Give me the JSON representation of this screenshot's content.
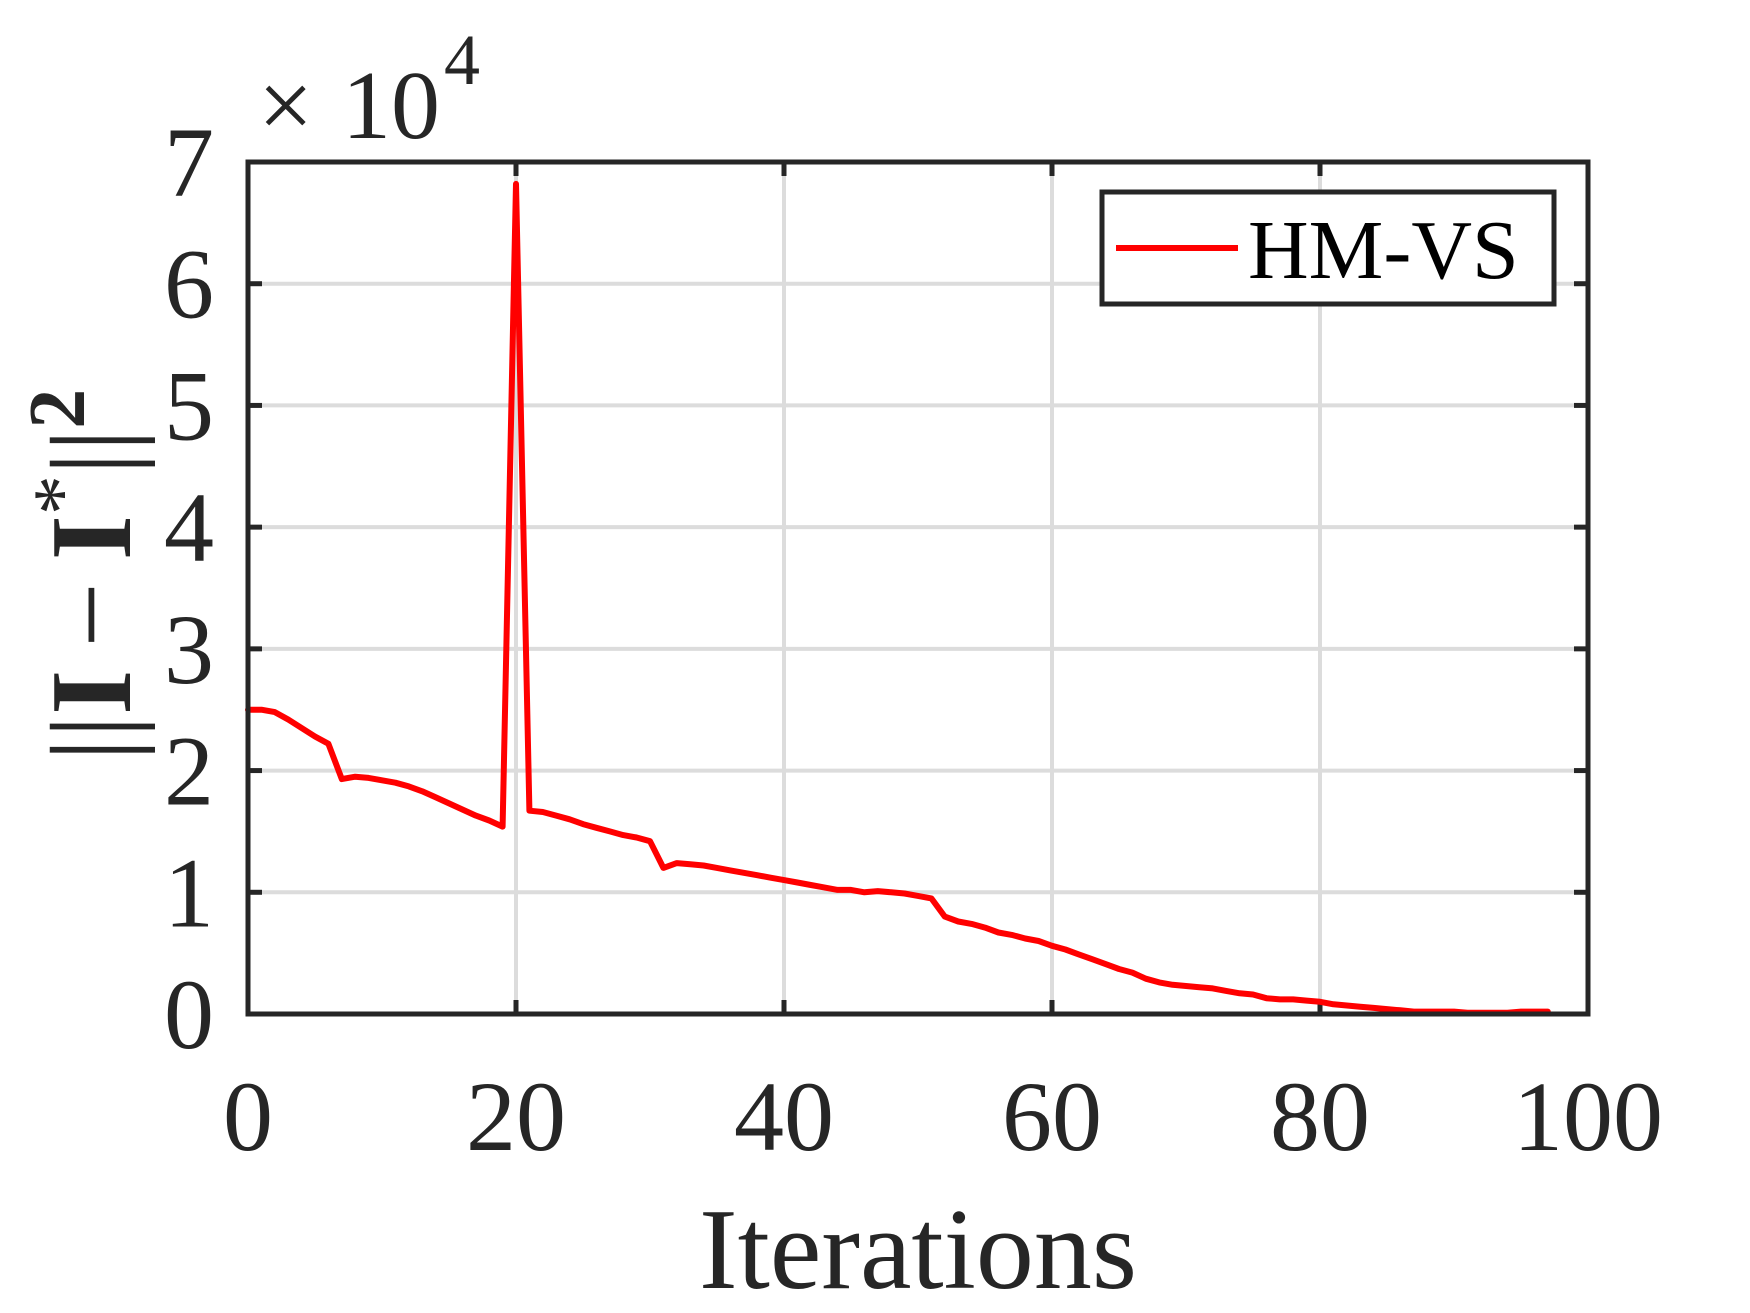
{
  "chart_data": {
    "type": "line",
    "xlabel": "Iterations",
    "ylabel": "||I − I*||²",
    "ylabel_parts": {
      "bars_left": "||",
      "I1": "I",
      "minus": "−",
      "I2": "I",
      "star": "*",
      "bars_right": "||",
      "power": "2"
    },
    "xlim": [
      0,
      100
    ],
    "ylim": [
      0,
      7
    ],
    "x_ticks": [
      "0",
      "20",
      "40",
      "60",
      "80",
      "100"
    ],
    "y_ticks": [
      "0",
      "1",
      "2",
      "3",
      "4",
      "5",
      "6",
      "7"
    ],
    "y_multiplier": {
      "times": "×",
      "base": "10",
      "exponent": "4"
    },
    "grid": true,
    "legend_position": "top-right",
    "series": [
      {
        "name": "HM-VS",
        "color": "#ff0000",
        "x": [
          0,
          1,
          2,
          3,
          4,
          5,
          6,
          7,
          8,
          9,
          10,
          11,
          12,
          13,
          14,
          15,
          16,
          17,
          18,
          19,
          20,
          21,
          22,
          23,
          24,
          25,
          26,
          27,
          28,
          29,
          30,
          31,
          32,
          33,
          34,
          35,
          36,
          37,
          38,
          39,
          40,
          41,
          42,
          43,
          44,
          45,
          46,
          47,
          48,
          49,
          50,
          51,
          52,
          53,
          54,
          55,
          56,
          57,
          58,
          59,
          60,
          61,
          62,
          63,
          64,
          65,
          66,
          67,
          68,
          69,
          70,
          71,
          72,
          73,
          74,
          75,
          76,
          77,
          78,
          79,
          80,
          81,
          82,
          83,
          84,
          85,
          86,
          87,
          88,
          89,
          90,
          91,
          92,
          93,
          94,
          95,
          96,
          97
        ],
        "y": [
          2.5,
          2.5,
          2.48,
          2.42,
          2.35,
          2.28,
          2.22,
          1.93,
          1.95,
          1.94,
          1.92,
          1.9,
          1.87,
          1.83,
          1.78,
          1.73,
          1.68,
          1.63,
          1.59,
          1.54,
          6.82,
          1.67,
          1.66,
          1.63,
          1.6,
          1.56,
          1.53,
          1.5,
          1.47,
          1.45,
          1.42,
          1.2,
          1.24,
          1.23,
          1.22,
          1.2,
          1.18,
          1.16,
          1.14,
          1.12,
          1.1,
          1.08,
          1.06,
          1.04,
          1.02,
          1.02,
          1.0,
          1.01,
          1.0,
          0.99,
          0.97,
          0.95,
          0.8,
          0.76,
          0.74,
          0.71,
          0.67,
          0.65,
          0.62,
          0.6,
          0.56,
          0.53,
          0.49,
          0.45,
          0.41,
          0.37,
          0.34,
          0.29,
          0.26,
          0.24,
          0.23,
          0.22,
          0.21,
          0.19,
          0.17,
          0.16,
          0.13,
          0.12,
          0.12,
          0.11,
          0.1,
          0.08,
          0.07,
          0.06,
          0.05,
          0.04,
          0.03,
          0.02,
          0.02,
          0.02,
          0.02,
          0.01,
          0.01,
          0.01,
          0.01,
          0.02,
          0.02,
          0.02
        ]
      }
    ]
  }
}
